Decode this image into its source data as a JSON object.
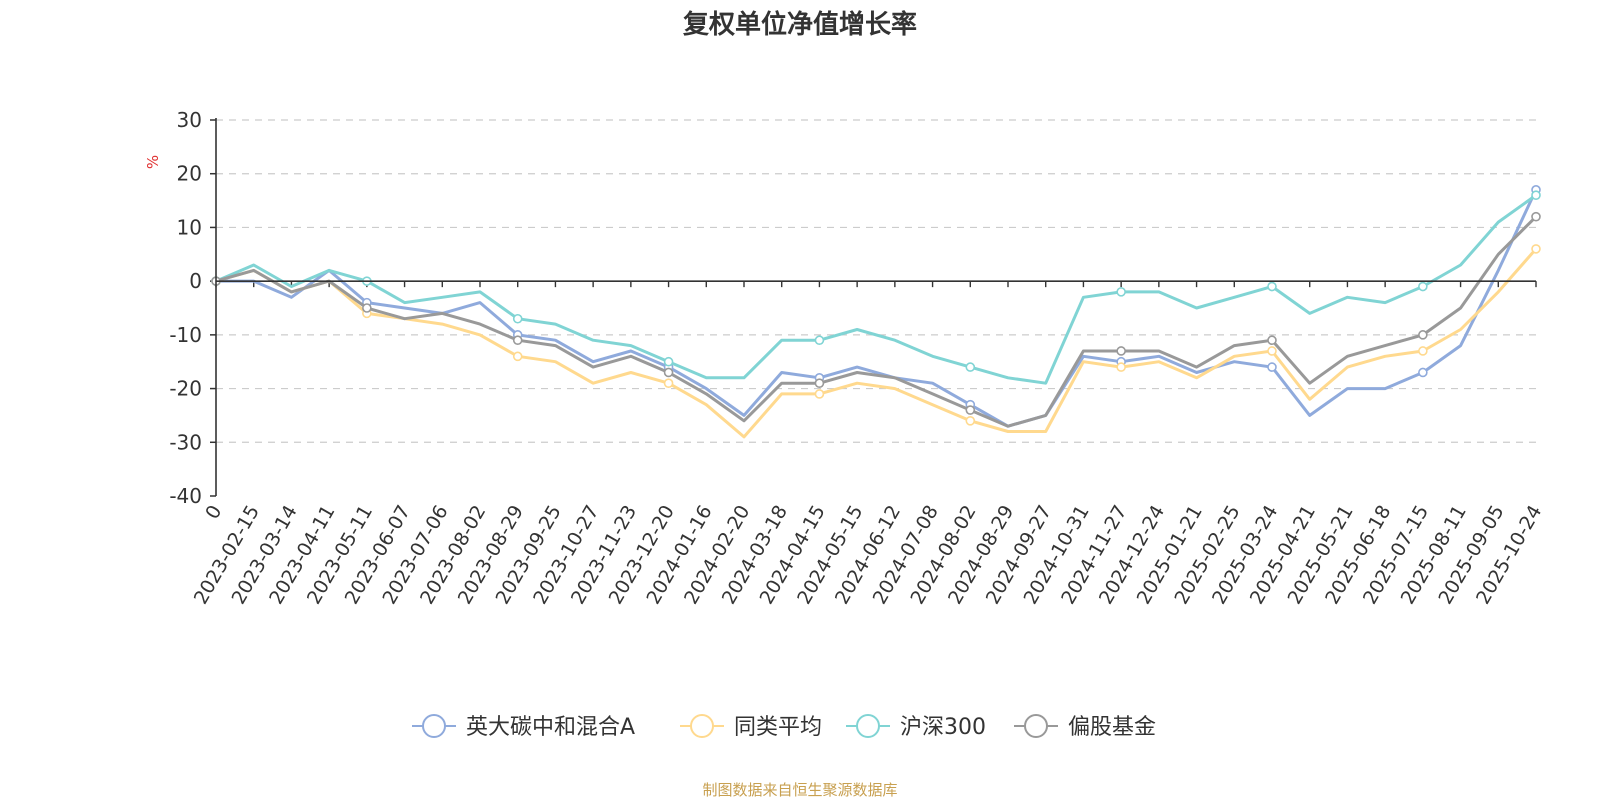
{
  "chart_data": {
    "type": "line",
    "title": "复权单位净值增长率",
    "ylabel": "%",
    "ylim": [
      -40,
      30
    ],
    "yticks": [
      30,
      20,
      10,
      0,
      -10,
      -20,
      -30,
      -40
    ],
    "grid": true,
    "legend_position": "bottom",
    "x": [
      "0",
      "2023-02-15",
      "2023-03-14",
      "2023-04-11",
      "2023-05-11",
      "2023-06-07",
      "2023-07-06",
      "2023-08-02",
      "2023-08-29",
      "2023-09-25",
      "2023-10-27",
      "2023-11-23",
      "2023-12-20",
      "2024-01-16",
      "2024-02-20",
      "2024-03-18",
      "2024-04-15",
      "2024-05-15",
      "2024-06-12",
      "2024-07-08",
      "2024-08-02",
      "2024-08-29",
      "2024-09-27",
      "2024-10-31",
      "2024-11-27",
      "2024-12-24",
      "2025-01-21",
      "2025-02-25",
      "2025-03-24",
      "2025-04-21",
      "2025-05-21",
      "2025-06-18",
      "2025-07-15",
      "2025-08-11",
      "2025-09-05",
      "2025-10-24"
    ],
    "series": [
      {
        "name": "英大碳中和混合A",
        "color": "#8faadc",
        "values": [
          0,
          0,
          -3,
          2,
          -4,
          -5,
          -6,
          -4,
          -10,
          -11,
          -15,
          -13,
          -16,
          -20,
          -25,
          -17,
          -18,
          -16,
          -18,
          -19,
          -23,
          -27,
          -25,
          -14,
          -15,
          -14,
          -17,
          -15,
          -16,
          -25,
          -20,
          -20,
          -17,
          -12,
          2,
          17
        ]
      },
      {
        "name": "同类平均",
        "color": "#ffd98e",
        "values": [
          0,
          2,
          -2,
          0,
          -6,
          -7,
          -8,
          -10,
          -14,
          -15,
          -19,
          -17,
          -19,
          -23,
          -29,
          -21,
          -21,
          -19,
          -20,
          -23,
          -26,
          -28,
          -28,
          -15,
          -16,
          -15,
          -18,
          -14,
          -13,
          -22,
          -16,
          -14,
          -13,
          -9,
          -2,
          6
        ]
      },
      {
        "name": "沪深300",
        "color": "#80d4d4",
        "values": [
          0,
          3,
          -1,
          2,
          0,
          -4,
          -3,
          -2,
          -7,
          -8,
          -11,
          -12,
          -15,
          -18,
          -18,
          -11,
          -11,
          -9,
          -11,
          -14,
          -16,
          -18,
          -19,
          -3,
          -2,
          -2,
          -5,
          -3,
          -1,
          -6,
          -3,
          -4,
          -1,
          3,
          11,
          16
        ]
      },
      {
        "name": "偏股基金",
        "color": "#999999",
        "values": [
          0,
          2,
          -2,
          0,
          -5,
          -7,
          -6,
          -8,
          -11,
          -12,
          -16,
          -14,
          -17,
          -21,
          -26,
          -19,
          -19,
          -17,
          -18,
          -21,
          -24,
          -27,
          -25,
          -13,
          -13,
          -13,
          -16,
          -12,
          -11,
          -19,
          -14,
          -12,
          -10,
          -5,
          5,
          12
        ]
      }
    ]
  },
  "source": {
    "text": "制图数据来自恒生聚源数据库",
    "color": "#c8a050"
  },
  "colors": {
    "axis": "#333333",
    "grid": "#cccccc",
    "unit": "#e03030"
  }
}
